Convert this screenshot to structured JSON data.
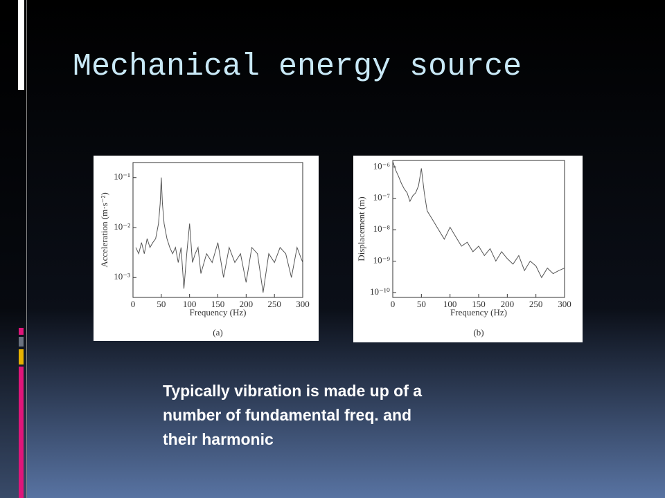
{
  "slide": {
    "title": "Mechanical energy source",
    "body": [
      "Typically vibration is made up of a",
      "number of fundamental freq. and",
      "their harmonic"
    ]
  },
  "chart_data": [
    {
      "type": "line",
      "caption": "(a)",
      "x_label": "Frequency (Hz)",
      "y_label": "Acceleration (m·s⁻²)",
      "log_y": true,
      "color": "#555555",
      "x": [
        5,
        10,
        15,
        20,
        25,
        30,
        35,
        40,
        45,
        48,
        50,
        52,
        55,
        60,
        65,
        70,
        75,
        80,
        85,
        90,
        95,
        100,
        105,
        110,
        115,
        120,
        130,
        140,
        150,
        160,
        170,
        180,
        190,
        200,
        210,
        220,
        230,
        240,
        250,
        260,
        270,
        280,
        290,
        300
      ],
      "values": [
        0.004,
        0.003,
        0.005,
        0.003,
        0.006,
        0.004,
        0.005,
        0.006,
        0.012,
        0.03,
        0.1,
        0.03,
        0.012,
        0.006,
        0.004,
        0.003,
        0.004,
        0.002,
        0.004,
        0.0006,
        0.003,
        0.012,
        0.002,
        0.003,
        0.004,
        0.0012,
        0.003,
        0.002,
        0.005,
        0.001,
        0.004,
        0.002,
        0.003,
        0.0008,
        0.004,
        0.003,
        0.0005,
        0.003,
        0.002,
        0.004,
        0.003,
        0.001,
        0.004,
        0.002
      ],
      "xlim": [
        0,
        300
      ],
      "xticks": [
        0,
        50,
        100,
        150,
        200,
        250,
        300
      ],
      "ylim": [
        0.0004,
        0.2
      ],
      "yticks": [
        {
          "value": 0.1,
          "label": "10⁻¹"
        },
        {
          "value": 0.01,
          "label": "10⁻²"
        },
        {
          "value": 0.001,
          "label": "10⁻³"
        }
      ]
    },
    {
      "type": "line",
      "caption": "(b)",
      "x_label": "Frequency (Hz)",
      "y_label": "Displacement (m)",
      "log_y": true,
      "color": "#555555",
      "x": [
        0,
        5,
        10,
        15,
        20,
        25,
        30,
        35,
        40,
        45,
        50,
        55,
        60,
        70,
        80,
        90,
        100,
        110,
        120,
        130,
        140,
        150,
        160,
        170,
        180,
        190,
        200,
        210,
        220,
        230,
        240,
        250,
        260,
        270,
        280,
        290,
        300
      ],
      "values": [
        1.5e-06,
        8e-07,
        5e-07,
        3e-07,
        2e-07,
        1.5e-07,
        8e-08,
        1.2e-07,
        1.5e-07,
        2.5e-07,
        9e-07,
        1.5e-07,
        4e-08,
        2e-08,
        1e-08,
        5e-09,
        1.2e-08,
        6e-09,
        3e-09,
        4e-09,
        2e-09,
        3e-09,
        1.5e-09,
        2.5e-09,
        1e-09,
        2e-09,
        1.2e-09,
        8e-10,
        1.5e-09,
        5e-10,
        1e-09,
        7e-10,
        3e-10,
        6e-10,
        4e-10,
        5e-10,
        6e-10
      ],
      "xlim": [
        0,
        300
      ],
      "xticks": [
        0,
        50,
        100,
        150,
        200,
        250,
        300
      ],
      "ylim": [
        7e-11,
        1.6e-06
      ],
      "yticks": [
        {
          "value": 1e-06,
          "label": "10⁻⁶"
        },
        {
          "value": 1e-07,
          "label": "10⁻⁷"
        },
        {
          "value": 1e-08,
          "label": "10⁻⁸"
        },
        {
          "value": 1e-09,
          "label": "10⁻⁹"
        },
        {
          "value": 1e-10,
          "label": "10⁻¹⁰"
        }
      ]
    }
  ]
}
